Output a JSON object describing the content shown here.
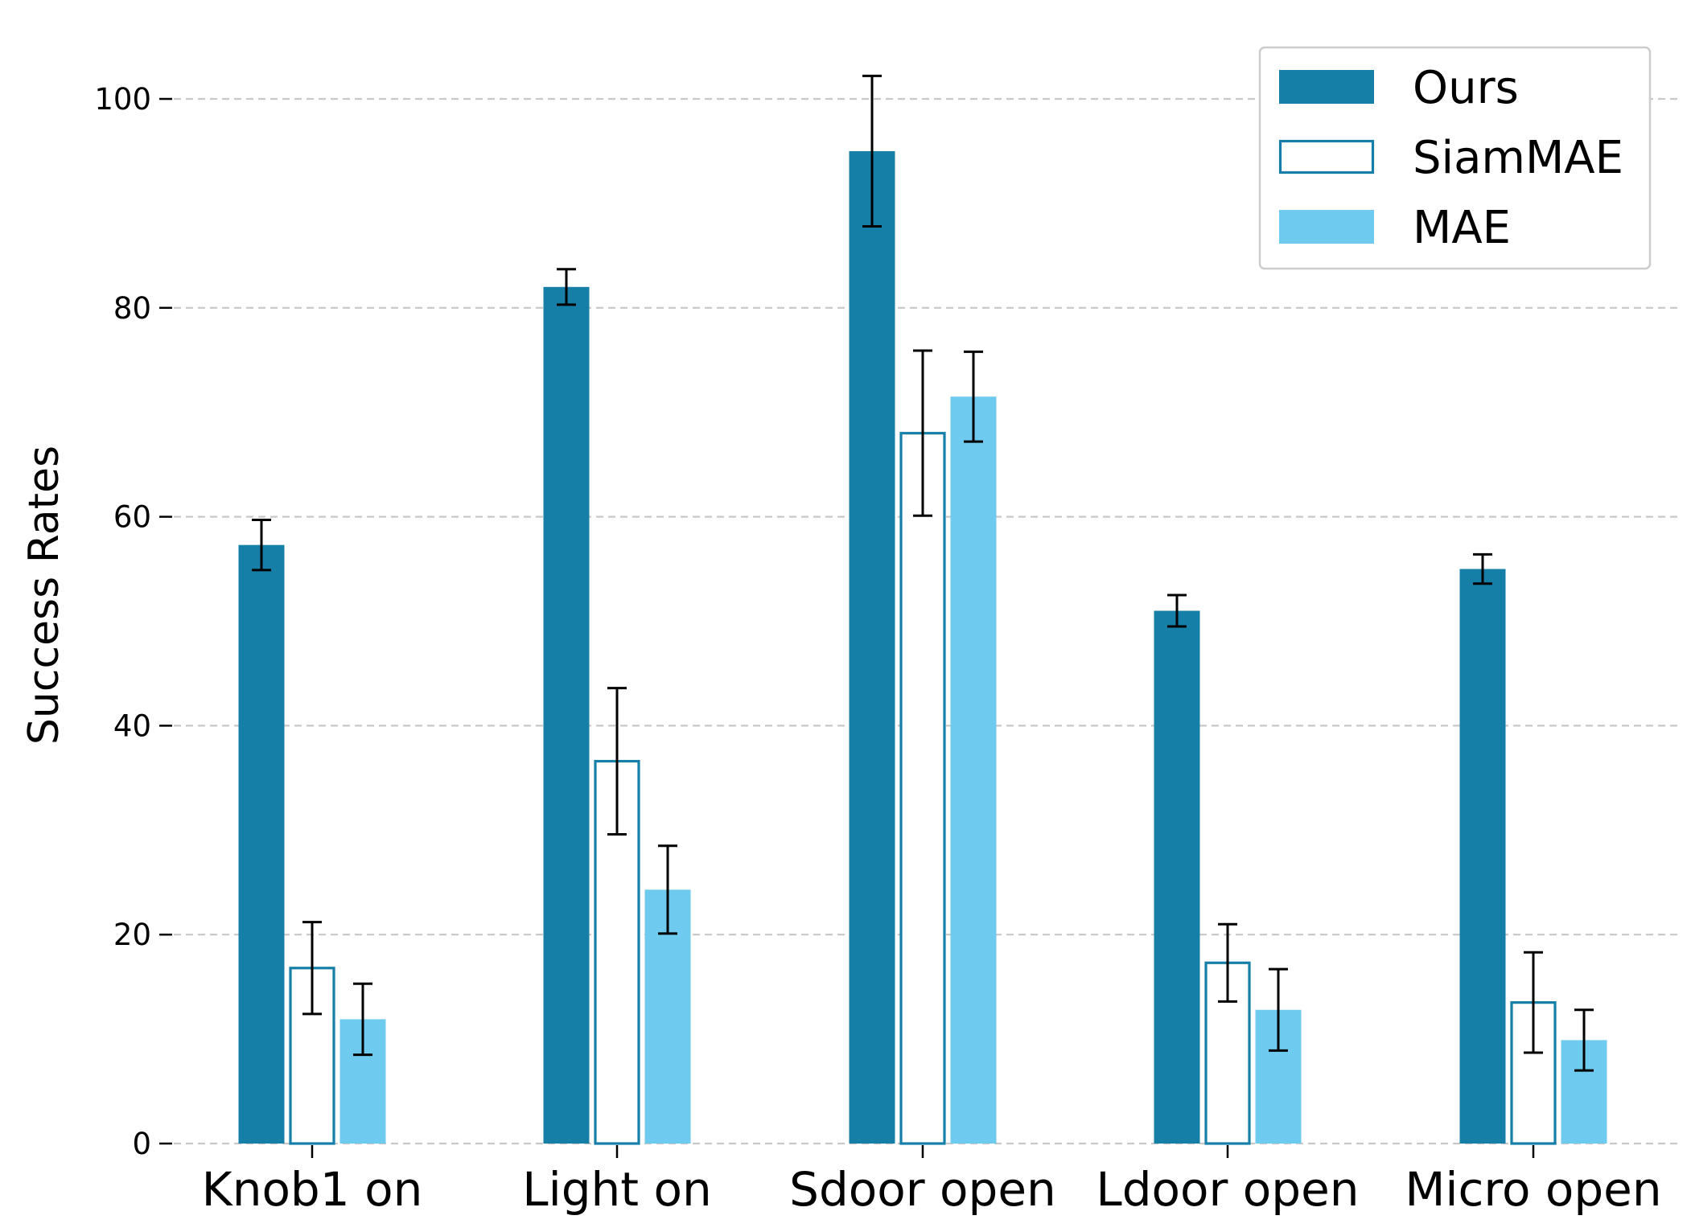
{
  "chart_data": {
    "type": "bar",
    "title": "",
    "xlabel": "",
    "ylabel": "Success Rates",
    "ylim": [
      0,
      104
    ],
    "yticks": [
      0,
      20,
      40,
      60,
      80,
      100
    ],
    "grid": true,
    "legend_position": "top-right",
    "categories": [
      "Knob1 on",
      "Light on",
      "Sdoor open",
      "Ldoor open",
      "Micro open"
    ],
    "series": [
      {
        "name": "Ours",
        "style": "filled",
        "color": "#167fa8",
        "values": [
          57.3,
          82.0,
          95.0,
          51.0,
          55.0
        ],
        "errors": [
          2.4,
          1.7,
          7.2,
          1.5,
          1.4
        ]
      },
      {
        "name": "SiamMAE",
        "style": "outline",
        "color": "#167fa8",
        "values": [
          16.8,
          36.6,
          68.0,
          17.3,
          13.5
        ],
        "errors": [
          4.4,
          7.0,
          7.9,
          3.7,
          4.8
        ]
      },
      {
        "name": "MAE",
        "style": "filled",
        "color": "#6ecaee",
        "values": [
          11.9,
          24.3,
          71.5,
          12.8,
          9.9
        ],
        "errors": [
          3.4,
          4.2,
          4.3,
          3.9,
          2.9
        ]
      }
    ]
  }
}
